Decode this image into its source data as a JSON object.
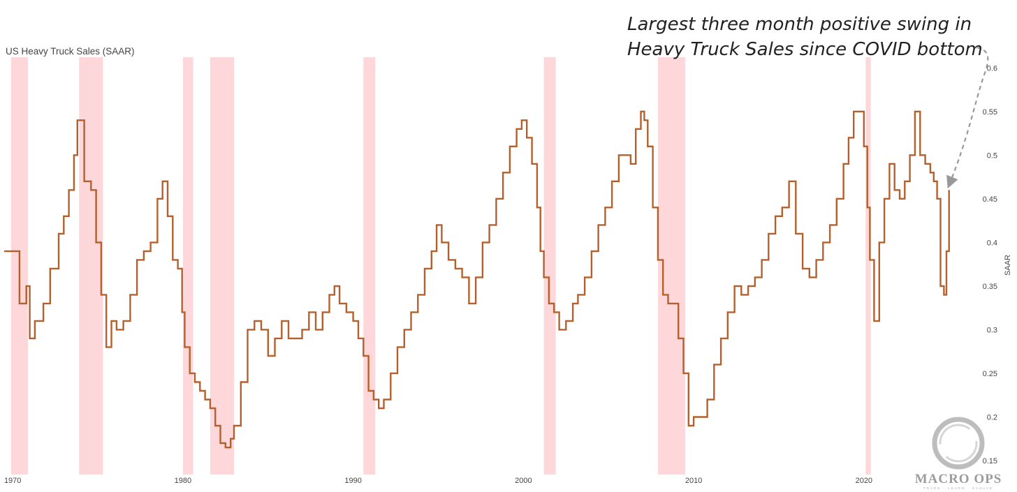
{
  "chart_data": {
    "type": "line",
    "title": "US Heavy Truck Sales (SAAR)",
    "ylabel": "SAAR",
    "xlabel": "",
    "xlim": [
      1969.5,
      2025.3
    ],
    "ylim": [
      0.15,
      0.605
    ],
    "y_axis_side": "right",
    "x_ticks": [
      1970,
      1980,
      1990,
      2000,
      2010,
      2020
    ],
    "x_tick_labels": [
      "1970",
      "1980",
      "1990",
      "2000",
      "2010",
      "2020"
    ],
    "y_ticks": [
      0.15,
      0.2,
      0.25,
      0.3,
      0.35,
      0.4,
      0.45,
      0.5,
      0.55,
      0.6
    ],
    "y_tick_labels": [
      "0.15",
      "0.2",
      "0.25",
      "0.3",
      "0.35",
      "0.4",
      "0.45",
      "0.5",
      "0.55",
      "0.6"
    ],
    "grid": false,
    "line_color": "#b5602c",
    "recession_color": "#fdd7da",
    "recessions": [
      [
        1969.9,
        1970.9
      ],
      [
        1973.9,
        1975.3
      ],
      [
        1980.0,
        1980.6
      ],
      [
        1981.6,
        1983.0
      ],
      [
        1990.6,
        1991.3
      ],
      [
        2001.2,
        2001.9
      ],
      [
        2007.9,
        2009.5
      ],
      [
        2020.1,
        2020.4
      ]
    ],
    "series": [
      {
        "x": [
          1969.5,
          1970.0,
          1970.4,
          1970.8,
          1971.0,
          1971.3,
          1971.8,
          1972.2,
          1972.7,
          1973.0,
          1973.3,
          1973.6,
          1973.8,
          1974.2,
          1974.6,
          1974.9,
          1975.2,
          1975.5,
          1975.8,
          1976.1,
          1976.5,
          1976.9,
          1977.3,
          1977.7,
          1978.1,
          1978.5,
          1978.8,
          1979.1,
          1979.4,
          1979.7,
          1979.95,
          1980.1,
          1980.4,
          1980.7,
          1981.0,
          1981.3,
          1981.6,
          1981.9,
          1982.2,
          1982.5,
          1982.8,
          1983.0,
          1983.4,
          1983.8,
          1984.2,
          1984.6,
          1985.0,
          1985.4,
          1985.8,
          1986.2,
          1986.6,
          1987.0,
          1987.4,
          1987.8,
          1988.2,
          1988.6,
          1988.9,
          1989.2,
          1989.6,
          1990.0,
          1990.3,
          1990.6,
          1990.9,
          1991.2,
          1991.5,
          1991.8,
          1992.2,
          1992.6,
          1993.0,
          1993.4,
          1993.8,
          1994.2,
          1994.6,
          1994.9,
          1995.2,
          1995.6,
          1996.0,
          1996.4,
          1996.8,
          1997.2,
          1997.6,
          1998.0,
          1998.4,
          1998.8,
          1999.2,
          1999.6,
          1999.9,
          2000.2,
          2000.5,
          2000.8,
          2001.0,
          2001.2,
          2001.5,
          2001.8,
          2002.1,
          2002.5,
          2002.9,
          2003.2,
          2003.6,
          2004.0,
          2004.4,
          2004.8,
          2005.2,
          2005.6,
          2006.0,
          2006.3,
          2006.6,
          2006.9,
          2007.1,
          2007.3,
          2007.6,
          2007.9,
          2008.2,
          2008.5,
          2008.8,
          2009.1,
          2009.4,
          2009.7,
          2010.0,
          2010.4,
          2010.8,
          2011.2,
          2011.6,
          2012.0,
          2012.4,
          2012.8,
          2013.2,
          2013.6,
          2014.0,
          2014.4,
          2014.8,
          2015.2,
          2015.6,
          2016.0,
          2016.4,
          2016.8,
          2017.2,
          2017.6,
          2018.0,
          2018.4,
          2018.8,
          2019.1,
          2019.4,
          2019.7,
          2020.0,
          2020.2,
          2020.35,
          2020.6,
          2020.9,
          2021.2,
          2021.5,
          2021.8,
          2022.1,
          2022.4,
          2022.7,
          2023.0,
          2023.3,
          2023.6,
          2023.9,
          2024.1,
          2024.3,
          2024.5,
          2024.7,
          2024.85,
          2025.0
        ],
        "values": [
          0.39,
          0.39,
          0.33,
          0.35,
          0.29,
          0.31,
          0.33,
          0.37,
          0.41,
          0.43,
          0.46,
          0.5,
          0.54,
          0.47,
          0.46,
          0.4,
          0.34,
          0.28,
          0.31,
          0.3,
          0.31,
          0.34,
          0.38,
          0.39,
          0.4,
          0.45,
          0.47,
          0.43,
          0.38,
          0.37,
          0.32,
          0.28,
          0.25,
          0.24,
          0.23,
          0.22,
          0.21,
          0.19,
          0.17,
          0.165,
          0.175,
          0.19,
          0.24,
          0.3,
          0.31,
          0.3,
          0.27,
          0.29,
          0.31,
          0.29,
          0.29,
          0.3,
          0.32,
          0.3,
          0.32,
          0.34,
          0.35,
          0.33,
          0.32,
          0.31,
          0.29,
          0.27,
          0.23,
          0.22,
          0.21,
          0.22,
          0.25,
          0.28,
          0.3,
          0.32,
          0.34,
          0.37,
          0.39,
          0.42,
          0.4,
          0.38,
          0.37,
          0.36,
          0.33,
          0.36,
          0.4,
          0.42,
          0.45,
          0.48,
          0.51,
          0.53,
          0.54,
          0.52,
          0.49,
          0.44,
          0.39,
          0.36,
          0.33,
          0.32,
          0.3,
          0.31,
          0.33,
          0.34,
          0.36,
          0.39,
          0.42,
          0.44,
          0.47,
          0.5,
          0.5,
          0.49,
          0.53,
          0.55,
          0.54,
          0.51,
          0.44,
          0.38,
          0.34,
          0.33,
          0.33,
          0.29,
          0.25,
          0.19,
          0.2,
          0.2,
          0.22,
          0.26,
          0.29,
          0.32,
          0.35,
          0.34,
          0.35,
          0.36,
          0.38,
          0.41,
          0.43,
          0.44,
          0.47,
          0.41,
          0.37,
          0.36,
          0.38,
          0.4,
          0.42,
          0.45,
          0.49,
          0.52,
          0.55,
          0.55,
          0.51,
          0.44,
          0.38,
          0.31,
          0.4,
          0.45,
          0.49,
          0.46,
          0.45,
          0.47,
          0.5,
          0.55,
          0.5,
          0.49,
          0.48,
          0.47,
          0.45,
          0.35,
          0.34,
          0.39,
          0.46
        ]
      }
    ]
  },
  "annotation": {
    "line1": "Largest three month positive swing in",
    "line2": "Heavy Truck Sales since COVID bottom"
  },
  "logo": {
    "name": "MACRO OPS",
    "tagline": "TRADE · LEARN · EVOLVE"
  }
}
